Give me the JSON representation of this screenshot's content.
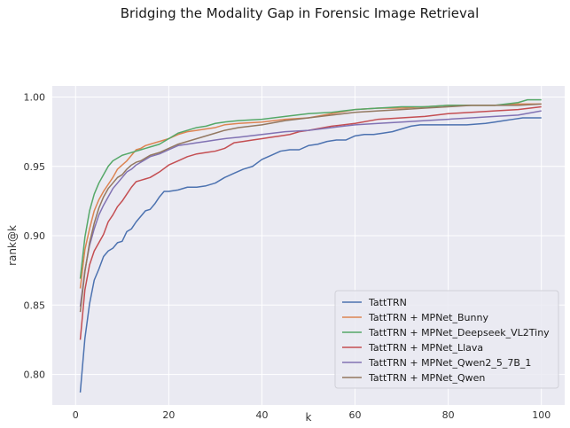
{
  "chart_data": {
    "type": "line",
    "title": "Bridging the Modality Gap in Forensic Image Retrieval",
    "xlabel": "k",
    "ylabel": "rank@k",
    "xlim": [
      -5,
      105
    ],
    "ylim": [
      0.778,
      1.008
    ],
    "xticks": [
      0,
      20,
      40,
      60,
      80,
      100
    ],
    "yticks": [
      0.8,
      0.85,
      0.9,
      0.95,
      1.0
    ],
    "xtick_labels": [
      "0",
      "20",
      "40",
      "60",
      "80",
      "100"
    ],
    "ytick_labels": [
      "0.80",
      "0.85",
      "0.90",
      "0.95",
      "1.00"
    ],
    "grid": true,
    "legend_position": "lower-right",
    "series": [
      {
        "name": "TattTRN",
        "color": "#4c72b0",
        "points": [
          [
            1,
            0.787
          ],
          [
            2,
            0.826
          ],
          [
            3,
            0.851
          ],
          [
            4,
            0.868
          ],
          [
            5,
            0.876
          ],
          [
            6,
            0.885
          ],
          [
            7,
            0.889
          ],
          [
            8,
            0.891
          ],
          [
            9,
            0.895
          ],
          [
            10,
            0.896
          ],
          [
            11,
            0.903
          ],
          [
            12,
            0.905
          ],
          [
            13,
            0.91
          ],
          [
            14,
            0.914
          ],
          [
            15,
            0.918
          ],
          [
            16,
            0.919
          ],
          [
            17,
            0.923
          ],
          [
            18,
            0.928
          ],
          [
            19,
            0.932
          ],
          [
            20,
            0.932
          ],
          [
            22,
            0.933
          ],
          [
            24,
            0.935
          ],
          [
            26,
            0.935
          ],
          [
            28,
            0.936
          ],
          [
            30,
            0.938
          ],
          [
            32,
            0.942
          ],
          [
            34,
            0.945
          ],
          [
            36,
            0.948
          ],
          [
            38,
            0.95
          ],
          [
            40,
            0.955
          ],
          [
            42,
            0.958
          ],
          [
            44,
            0.961
          ],
          [
            46,
            0.962
          ],
          [
            48,
            0.962
          ],
          [
            50,
            0.965
          ],
          [
            52,
            0.966
          ],
          [
            54,
            0.968
          ],
          [
            56,
            0.969
          ],
          [
            58,
            0.969
          ],
          [
            60,
            0.972
          ],
          [
            62,
            0.973
          ],
          [
            64,
            0.973
          ],
          [
            66,
            0.974
          ],
          [
            68,
            0.975
          ],
          [
            70,
            0.977
          ],
          [
            72,
            0.979
          ],
          [
            74,
            0.98
          ],
          [
            76,
            0.98
          ],
          [
            80,
            0.98
          ],
          [
            84,
            0.98
          ],
          [
            88,
            0.981
          ],
          [
            90,
            0.982
          ],
          [
            92,
            0.983
          ],
          [
            94,
            0.984
          ],
          [
            96,
            0.985
          ],
          [
            100,
            0.985
          ]
        ]
      },
      {
        "name": "TattTRN + MPNet_Bunny",
        "color": "#dd8452",
        "points": [
          [
            1,
            0.862
          ],
          [
            2,
            0.89
          ],
          [
            3,
            0.905
          ],
          [
            4,
            0.918
          ],
          [
            5,
            0.926
          ],
          [
            6,
            0.932
          ],
          [
            7,
            0.937
          ],
          [
            8,
            0.942
          ],
          [
            9,
            0.948
          ],
          [
            10,
            0.951
          ],
          [
            11,
            0.954
          ],
          [
            12,
            0.958
          ],
          [
            13,
            0.962
          ],
          [
            14,
            0.963
          ],
          [
            15,
            0.965
          ],
          [
            16,
            0.966
          ],
          [
            18,
            0.968
          ],
          [
            20,
            0.97
          ],
          [
            22,
            0.973
          ],
          [
            24,
            0.975
          ],
          [
            26,
            0.976
          ],
          [
            28,
            0.977
          ],
          [
            30,
            0.978
          ],
          [
            32,
            0.98
          ],
          [
            35,
            0.981
          ],
          [
            40,
            0.982
          ],
          [
            45,
            0.984
          ],
          [
            50,
            0.985
          ],
          [
            55,
            0.988
          ],
          [
            60,
            0.991
          ],
          [
            65,
            0.992
          ],
          [
            70,
            0.992
          ],
          [
            75,
            0.993
          ],
          [
            80,
            0.994
          ],
          [
            85,
            0.994
          ],
          [
            90,
            0.994
          ],
          [
            95,
            0.995
          ],
          [
            100,
            0.995
          ]
        ]
      },
      {
        "name": "TattTRN + MPNet_Deepseek_VL2Tiny",
        "color": "#55a868",
        "points": [
          [
            1,
            0.869
          ],
          [
            2,
            0.899
          ],
          [
            3,
            0.918
          ],
          [
            4,
            0.93
          ],
          [
            5,
            0.938
          ],
          [
            6,
            0.944
          ],
          [
            7,
            0.95
          ],
          [
            8,
            0.954
          ],
          [
            9,
            0.956
          ],
          [
            10,
            0.958
          ],
          [
            11,
            0.959
          ],
          [
            12,
            0.96
          ],
          [
            13,
            0.961
          ],
          [
            14,
            0.962
          ],
          [
            15,
            0.963
          ],
          [
            16,
            0.964
          ],
          [
            18,
            0.966
          ],
          [
            20,
            0.97
          ],
          [
            22,
            0.974
          ],
          [
            24,
            0.976
          ],
          [
            26,
            0.978
          ],
          [
            28,
            0.979
          ],
          [
            30,
            0.981
          ],
          [
            32,
            0.982
          ],
          [
            35,
            0.983
          ],
          [
            40,
            0.984
          ],
          [
            45,
            0.986
          ],
          [
            50,
            0.988
          ],
          [
            55,
            0.989
          ],
          [
            60,
            0.991
          ],
          [
            65,
            0.992
          ],
          [
            70,
            0.993
          ],
          [
            75,
            0.993
          ],
          [
            80,
            0.994
          ],
          [
            85,
            0.994
          ],
          [
            90,
            0.994
          ],
          [
            95,
            0.996
          ],
          [
            97,
            0.998
          ],
          [
            100,
            0.998
          ]
        ]
      },
      {
        "name": "TattTRN + MPNet_Llava",
        "color": "#c44e52",
        "points": [
          [
            1,
            0.825
          ],
          [
            2,
            0.861
          ],
          [
            3,
            0.879
          ],
          [
            4,
            0.889
          ],
          [
            5,
            0.895
          ],
          [
            6,
            0.901
          ],
          [
            7,
            0.91
          ],
          [
            8,
            0.915
          ],
          [
            9,
            0.921
          ],
          [
            10,
            0.925
          ],
          [
            11,
            0.93
          ],
          [
            12,
            0.935
          ],
          [
            13,
            0.939
          ],
          [
            14,
            0.94
          ],
          [
            15,
            0.941
          ],
          [
            16,
            0.942
          ],
          [
            17,
            0.944
          ],
          [
            18,
            0.946
          ],
          [
            20,
            0.951
          ],
          [
            22,
            0.954
          ],
          [
            24,
            0.957
          ],
          [
            26,
            0.959
          ],
          [
            28,
            0.96
          ],
          [
            30,
            0.961
          ],
          [
            32,
            0.963
          ],
          [
            34,
            0.967
          ],
          [
            36,
            0.968
          ],
          [
            38,
            0.969
          ],
          [
            40,
            0.97
          ],
          [
            42,
            0.971
          ],
          [
            44,
            0.972
          ],
          [
            46,
            0.973
          ],
          [
            48,
            0.975
          ],
          [
            50,
            0.976
          ],
          [
            55,
            0.979
          ],
          [
            60,
            0.981
          ],
          [
            65,
            0.984
          ],
          [
            70,
            0.985
          ],
          [
            75,
            0.986
          ],
          [
            80,
            0.988
          ],
          [
            85,
            0.989
          ],
          [
            90,
            0.99
          ],
          [
            95,
            0.991
          ],
          [
            100,
            0.993
          ]
        ]
      },
      {
        "name": "TattTRN + MPNet_Qwen2_5_7B_1",
        "color": "#8172b3",
        "points": [
          [
            1,
            0.849
          ],
          [
            2,
            0.875
          ],
          [
            3,
            0.893
          ],
          [
            4,
            0.905
          ],
          [
            5,
            0.915
          ],
          [
            6,
            0.922
          ],
          [
            7,
            0.928
          ],
          [
            8,
            0.934
          ],
          [
            9,
            0.938
          ],
          [
            10,
            0.942
          ],
          [
            11,
            0.946
          ],
          [
            12,
            0.948
          ],
          [
            13,
            0.951
          ],
          [
            14,
            0.953
          ],
          [
            15,
            0.955
          ],
          [
            16,
            0.957
          ],
          [
            18,
            0.959
          ],
          [
            20,
            0.962
          ],
          [
            22,
            0.965
          ],
          [
            24,
            0.966
          ],
          [
            26,
            0.967
          ],
          [
            28,
            0.968
          ],
          [
            30,
            0.969
          ],
          [
            32,
            0.97
          ],
          [
            35,
            0.971
          ],
          [
            40,
            0.973
          ],
          [
            45,
            0.975
          ],
          [
            50,
            0.976
          ],
          [
            55,
            0.978
          ],
          [
            60,
            0.98
          ],
          [
            65,
            0.981
          ],
          [
            70,
            0.982
          ],
          [
            75,
            0.983
          ],
          [
            80,
            0.984
          ],
          [
            85,
            0.985
          ],
          [
            90,
            0.986
          ],
          [
            95,
            0.987
          ],
          [
            100,
            0.99
          ]
        ]
      },
      {
        "name": "TattTRN + MPNet_Qwen",
        "color": "#937860",
        "points": [
          [
            1,
            0.845
          ],
          [
            2,
            0.874
          ],
          [
            3,
            0.895
          ],
          [
            4,
            0.909
          ],
          [
            5,
            0.92
          ],
          [
            6,
            0.928
          ],
          [
            7,
            0.934
          ],
          [
            8,
            0.938
          ],
          [
            9,
            0.942
          ],
          [
            10,
            0.944
          ],
          [
            11,
            0.948
          ],
          [
            12,
            0.951
          ],
          [
            13,
            0.953
          ],
          [
            14,
            0.954
          ],
          [
            15,
            0.956
          ],
          [
            16,
            0.958
          ],
          [
            18,
            0.96
          ],
          [
            20,
            0.963
          ],
          [
            22,
            0.966
          ],
          [
            24,
            0.968
          ],
          [
            26,
            0.97
          ],
          [
            28,
            0.972
          ],
          [
            30,
            0.974
          ],
          [
            32,
            0.976
          ],
          [
            35,
            0.978
          ],
          [
            40,
            0.98
          ],
          [
            45,
            0.983
          ],
          [
            50,
            0.985
          ],
          [
            55,
            0.987
          ],
          [
            60,
            0.989
          ],
          [
            65,
            0.99
          ],
          [
            70,
            0.991
          ],
          [
            75,
            0.992
          ],
          [
            80,
            0.993
          ],
          [
            85,
            0.994
          ],
          [
            90,
            0.994
          ],
          [
            95,
            0.994
          ],
          [
            100,
            0.995
          ]
        ]
      }
    ]
  }
}
